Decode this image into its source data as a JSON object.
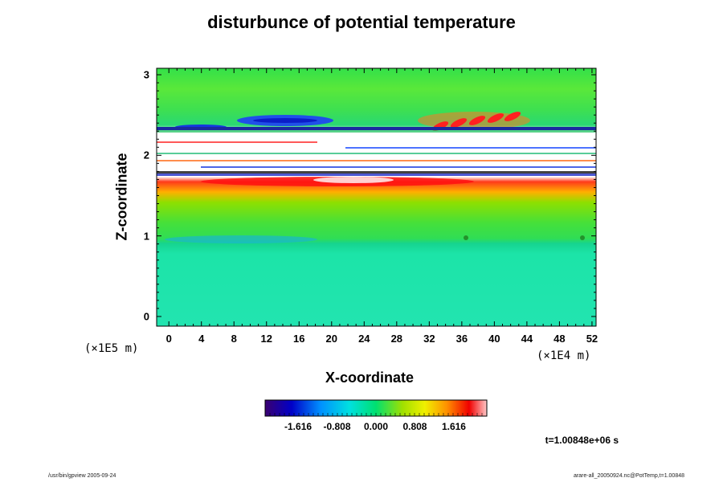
{
  "chart_data": {
    "type": "heatmap",
    "title": "disturbunce of potential temperature",
    "xlabel": "X-coordinate",
    "ylabel": "Z-coordinate",
    "x_unit": "(×1E4 m)",
    "y_unit": "(×1E5 m)",
    "xlim": [
      -1.5,
      52.5
    ],
    "ylim": [
      -0.12,
      3.08
    ],
    "x_ticks": [
      "0",
      "4",
      "8",
      "12",
      "16",
      "20",
      "24",
      "28",
      "32",
      "36",
      "40",
      "44",
      "48",
      "52"
    ],
    "y_ticks": [
      "0",
      "1",
      "2",
      "3"
    ],
    "colorbar": {
      "range": [
        -2.3,
        2.3
      ],
      "tick_labels": [
        "-1.616",
        "-0.808",
        "0.000",
        "0.808",
        "1.616"
      ]
    },
    "time_label": "t=1.00848e+06 s",
    "features": [
      {
        "region": "z 0 to 1",
        "value": -0.5
      },
      {
        "region": "z 1 to 1.6",
        "value": 0.3
      },
      {
        "region": "z 1.6 to 1.75",
        "value": 1.9
      },
      {
        "region": "z 1.75 to 2.3",
        "value": "saturated (white)"
      },
      {
        "region": "z 2.3 to 2.6, x 32-40",
        "value": 1.9
      },
      {
        "region": "z 2.4 to 2.5, x 8-24",
        "value": -1.8
      },
      {
        "region": "z 2.6 to 3.1",
        "value": 0.5
      }
    ]
  },
  "footer": {
    "left": "/usr/bin/gpview 2005-09-24",
    "right": "arare-all_20050924.nc@PotTemp,t=1.00848"
  }
}
